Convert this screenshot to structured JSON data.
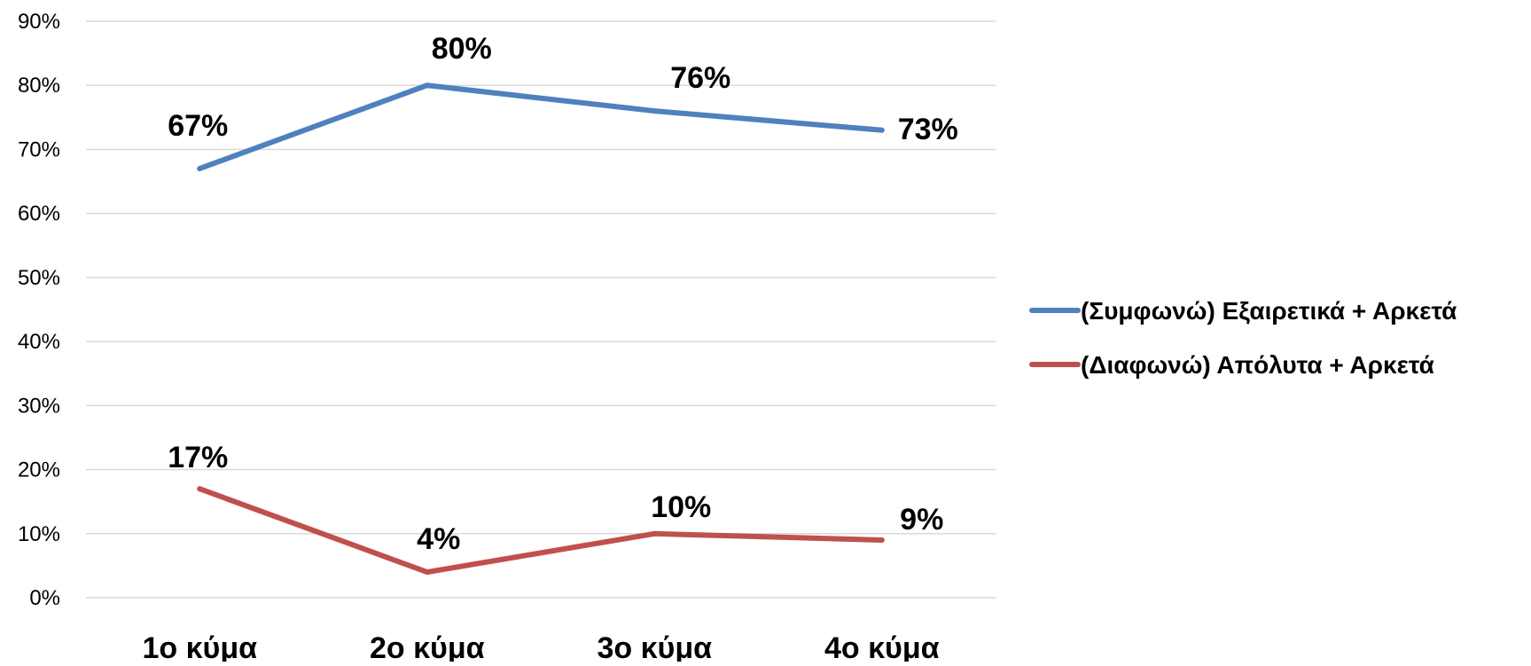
{
  "chart_data": {
    "type": "line",
    "title": "",
    "xlabel": "",
    "ylabel": "",
    "categories": [
      "1ο κύμα",
      "2ο κύμα",
      "3ο κύμα",
      "4ο κύμα"
    ],
    "ylim": [
      0,
      90
    ],
    "y_ticks": [
      0,
      10,
      20,
      30,
      40,
      50,
      60,
      70,
      80,
      90
    ],
    "y_tick_labels": [
      "0%",
      "10%",
      "20%",
      "30%",
      "40%",
      "50%",
      "60%",
      "70%",
      "80%",
      "90%"
    ],
    "grid": true,
    "legend_position": "right",
    "series": [
      {
        "name": "(Συμφωνώ) Εξαιρετικά + Αρκετά",
        "color": "#4F81BD",
        "values": [
          67,
          80,
          76,
          73
        ],
        "labels": [
          "67%",
          "80%",
          "76%",
          "73%"
        ]
      },
      {
        "name": "(Διαφωνώ) Απόλυτα + Αρκετά",
        "color": "#C0504D",
        "values": [
          17,
          4,
          10,
          9
        ],
        "labels": [
          "17%",
          "4%",
          "10%",
          "9%"
        ]
      }
    ]
  }
}
